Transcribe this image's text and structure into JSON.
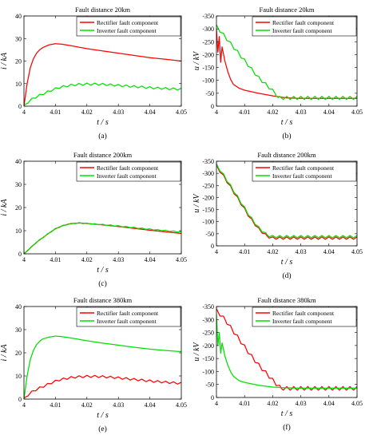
{
  "chart_data": [
    {
      "type": "line",
      "panel_label": "(a)",
      "title": "Fault distance 20km",
      "xlabel": "t / s",
      "ylabel": "i / kA",
      "xlim": [
        4,
        4.05
      ],
      "ylim": [
        0,
        40
      ],
      "xticks": [
        "4",
        "4.01",
        "4.02",
        "4.03",
        "4.04",
        "4.05"
      ],
      "yticks": [
        "0",
        "10",
        "20",
        "30",
        "40"
      ],
      "legend_position": "top-right",
      "series": [
        {
          "name": "Rectifier fault component",
          "color": "#ff0000",
          "x": [
            4,
            4.001,
            4.002,
            4.003,
            4.004,
            4.005,
            4.006,
            4.008,
            4.01,
            4.012,
            4.015,
            4.02,
            4.025,
            4.03,
            4.035,
            4.04,
            4.045,
            4.05
          ],
          "y": [
            0,
            10,
            17,
            21,
            23.5,
            25,
            26,
            27.2,
            27.7,
            27.5,
            26.8,
            25.5,
            24.5,
            23.5,
            22.5,
            21.5,
            20.8,
            20
          ]
        },
        {
          "name": "Inverter fault component",
          "color": "#00e000",
          "x": [
            4,
            4.001,
            4.003,
            4.005,
            4.007,
            4.009,
            4.011,
            4.013,
            4.015,
            4.017,
            4.02,
            4.023,
            4.026,
            4.029,
            4.032,
            4.035,
            4.038,
            4.041,
            4.044,
            4.047,
            4.05
          ],
          "y": [
            0,
            1.5,
            3.5,
            4.8,
            6,
            7.2,
            8.2,
            8.8,
            9.3,
            9.6,
            9.8,
            9.8,
            9.6,
            9.3,
            9,
            8.7,
            8.4,
            8.1,
            7.9,
            7.7,
            7.5
          ],
          "ripple": 0.9,
          "ripple_period": 0.0025
        }
      ]
    },
    {
      "type": "line",
      "panel_label": "(b)",
      "title": "Fault distance 20km",
      "xlabel": "t / s",
      "ylabel": "u / kV",
      "xlim": [
        4,
        4.05
      ],
      "ylim": [
        -350,
        0
      ],
      "xticks": [
        "4",
        "4.01",
        "4.02",
        "4.03",
        "4.04",
        "4.05"
      ],
      "yticks": [
        "0",
        "-50",
        "-100",
        "-150",
        "-200",
        "-250",
        "-300",
        "-350"
      ],
      "legend_position": "top-right",
      "series": [
        {
          "name": "Rectifier fault component",
          "color": "#ff0000",
          "x": [
            4,
            4.0005,
            4.001,
            4.0015,
            4.002,
            4.003,
            4.004,
            4.005,
            4.006,
            4.008,
            4.01,
            4.015,
            4.02,
            4.025,
            4.03,
            4.04,
            4.05
          ],
          "y": [
            -50,
            -140,
            -80,
            -180,
            -120,
            -175,
            -215,
            -245,
            -265,
            -280,
            -288,
            -300,
            -310,
            -318,
            -320,
            -320,
            -320
          ]
        },
        {
          "name": "Inverter fault component",
          "color": "#00e000",
          "x": [
            4,
            4.003,
            4.006,
            4.009,
            4.012,
            4.015,
            4.018,
            4.021,
            4.022,
            4.05
          ],
          "y": [
            -40,
            -80,
            -120,
            -160,
            -200,
            -240,
            -270,
            -300,
            -318,
            -318
          ],
          "ripple": 12,
          "ripple_period": 0.0025
        }
      ]
    },
    {
      "type": "line",
      "panel_label": "(c)",
      "title": "Fault distance 200km",
      "xlabel": "t / s",
      "ylabel": "i / kA",
      "xlim": [
        4,
        4.05
      ],
      "ylim": [
        0,
        40
      ],
      "xticks": [
        "4",
        "4.01",
        "4.02",
        "4.03",
        "4.04",
        "4.05"
      ],
      "yticks": [
        "0",
        "10",
        "20",
        "30",
        "40"
      ],
      "legend_position": "top-right",
      "series": [
        {
          "name": "Rectifier fault component",
          "color": "#ff0000",
          "x": [
            4,
            4.002,
            4.004,
            4.006,
            4.008,
            4.01,
            4.012,
            4.014,
            4.016,
            4.018,
            4.02,
            4.025,
            4.03,
            4.035,
            4.04,
            4.045,
            4.05
          ],
          "y": [
            0,
            2.5,
            5,
            7,
            9,
            10.8,
            12,
            12.8,
            13.2,
            13.3,
            13.1,
            12.5,
            11.8,
            11,
            10.2,
            9.5,
            8.8
          ]
        },
        {
          "name": "Inverter fault component",
          "color": "#00e000",
          "x": [
            4,
            4.002,
            4.004,
            4.006,
            4.008,
            4.01,
            4.012,
            4.014,
            4.016,
            4.018,
            4.02,
            4.025,
            4.03,
            4.035,
            4.04,
            4.045,
            4.05
          ],
          "y": [
            0,
            2.5,
            5,
            7,
            9,
            10.8,
            12,
            12.8,
            13.2,
            13.3,
            13.1,
            12.6,
            12,
            11.3,
            10.6,
            10,
            9.4
          ],
          "ripple": 0.35,
          "ripple_period": 0.0025
        }
      ]
    },
    {
      "type": "line",
      "panel_label": "(d)",
      "title": "Fault distance 200km",
      "xlabel": "t / s",
      "ylabel": "u / kV",
      "xlim": [
        4,
        4.05
      ],
      "ylim": [
        -350,
        0
      ],
      "xticks": [
        "4",
        "4.01",
        "4.02",
        "4.03",
        "4.04",
        "4.05"
      ],
      "yticks": [
        "0",
        "-50",
        "-100",
        "-150",
        "-200",
        "-250",
        "-300",
        "-350"
      ],
      "legend_position": "top-right",
      "series": [
        {
          "name": "Rectifier fault component",
          "color": "#ff0000",
          "x": [
            4,
            4.003,
            4.006,
            4.009,
            4.012,
            4.015,
            4.018,
            4.02,
            4.05
          ],
          "y": [
            -20,
            -70,
            -125,
            -180,
            -235,
            -280,
            -310,
            -318,
            -318
          ],
          "ripple": 10,
          "ripple_period": 0.0025
        },
        {
          "name": "Inverter fault component",
          "color": "#00e000",
          "x": [
            4,
            4.003,
            4.006,
            4.009,
            4.012,
            4.015,
            4.018,
            4.02,
            4.05
          ],
          "y": [
            -15,
            -65,
            -120,
            -175,
            -230,
            -275,
            -305,
            -312,
            -312
          ],
          "ripple": 10,
          "ripple_period": 0.0025
        }
      ]
    },
    {
      "type": "line",
      "panel_label": "(e)",
      "title": "Fault distance 380km",
      "xlabel": "t / s",
      "ylabel": "i / kA",
      "xlim": [
        4,
        4.05
      ],
      "ylim": [
        0,
        40
      ],
      "xticks": [
        "4",
        "4.01",
        "4.02",
        "4.03",
        "4.04",
        "4.05"
      ],
      "yticks": [
        "0",
        "10",
        "20",
        "30",
        "40"
      ],
      "legend_position": "top-right",
      "series": [
        {
          "name": "Rectifier fault component",
          "color": "#ff0000",
          "x": [
            4,
            4.001,
            4.003,
            4.005,
            4.007,
            4.009,
            4.011,
            4.013,
            4.015,
            4.017,
            4.02,
            4.023,
            4.026,
            4.029,
            4.032,
            4.035,
            4.038,
            4.041,
            4.044,
            4.047,
            4.05
          ],
          "y": [
            0,
            1.5,
            3.5,
            4.8,
            6,
            7.2,
            8.2,
            8.8,
            9.3,
            9.6,
            9.8,
            9.8,
            9.6,
            9.3,
            8.9,
            8.5,
            8.1,
            7.7,
            7.4,
            7.1,
            6.8
          ],
          "ripple": 0.9,
          "ripple_period": 0.0025
        },
        {
          "name": "Inverter fault component",
          "color": "#00e000",
          "x": [
            4,
            4.001,
            4.002,
            4.003,
            4.004,
            4.005,
            4.006,
            4.008,
            4.01,
            4.012,
            4.015,
            4.02,
            4.025,
            4.03,
            4.035,
            4.04,
            4.045,
            4.05
          ],
          "y": [
            0,
            10,
            17,
            21,
            23.5,
            25,
            26,
            26.8,
            27.2,
            27,
            26.4,
            25.2,
            24.2,
            23.3,
            22.4,
            21.6,
            21,
            20.5
          ]
        }
      ]
    },
    {
      "type": "line",
      "panel_label": "(f)",
      "title": "Fault distance 380km",
      "xlabel": "t / s",
      "ylabel": "u / kV",
      "xlim": [
        4,
        4.05
      ],
      "ylim": [
        -350,
        0
      ],
      "xticks": [
        "4",
        "4.01",
        "4.02",
        "4.03",
        "4.04",
        "4.05"
      ],
      "yticks": [
        "0",
        "-50",
        "-100",
        "-150",
        "-200",
        "-250",
        "-300",
        "-350"
      ],
      "legend_position": "top-right",
      "series": [
        {
          "name": "Rectifier fault component",
          "color": "#ff0000",
          "x": [
            4,
            4.003,
            4.006,
            4.009,
            4.012,
            4.015,
            4.018,
            4.021,
            4.023,
            4.05
          ],
          "y": [
            -15,
            -50,
            -95,
            -140,
            -185,
            -225,
            -260,
            -295,
            -315,
            -315
          ],
          "ripple": 14,
          "ripple_period": 0.0025
        },
        {
          "name": "Inverter fault component",
          "color": "#00e000",
          "x": [
            4,
            4.0005,
            4.001,
            4.0015,
            4.002,
            4.003,
            4.004,
            4.005,
            4.006,
            4.008,
            4.01,
            4.015,
            4.02,
            4.025,
            4.03,
            4.04,
            4.05
          ],
          "y": [
            -30,
            -150,
            -100,
            -180,
            -140,
            -190,
            -225,
            -250,
            -268,
            -285,
            -292,
            -303,
            -310,
            -313,
            -314,
            -314,
            -314
          ]
        }
      ]
    }
  ]
}
